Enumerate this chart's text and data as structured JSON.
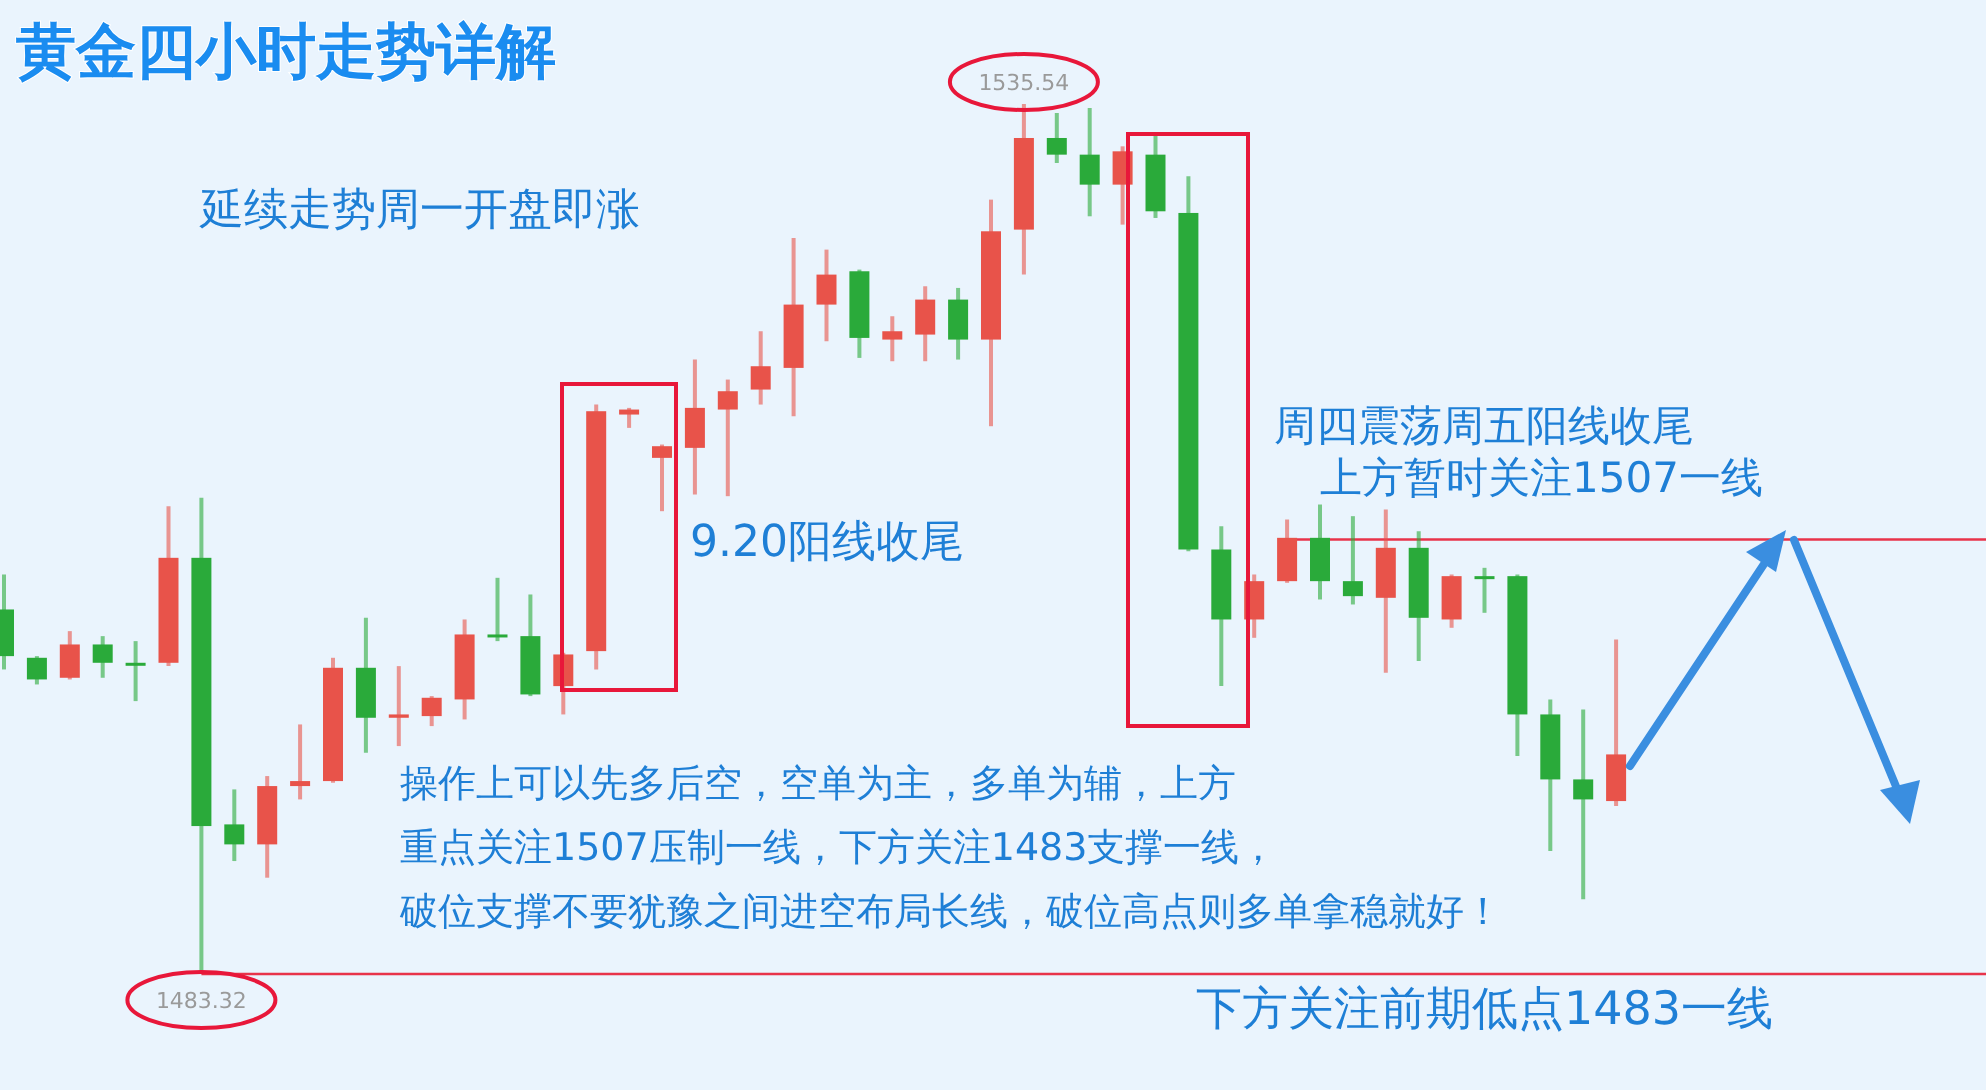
{
  "chart_data": {
    "type": "candlestick",
    "title": "黄金四小时走势详解",
    "categories": [
      null,
      null,
      null,
      null,
      null,
      null,
      null,
      null,
      null,
      null,
      null,
      null,
      null,
      null,
      null,
      null,
      null,
      null,
      null,
      null,
      null,
      null,
      null,
      null,
      null,
      null,
      null,
      null,
      null,
      null,
      null,
      null,
      null,
      null,
      null,
      null,
      null,
      null,
      null,
      null,
      null,
      null,
      null,
      null,
      null,
      null,
      null,
      null,
      null,
      null
    ],
    "ohlc": [
      [
        1505.2,
        1507.3,
        1501.6,
        1502.4
      ],
      [
        1502.3,
        1502.4,
        1500.7,
        1501.0
      ],
      [
        1501.1,
        1503.9,
        1501.0,
        1503.1
      ],
      [
        1503.1,
        1503.6,
        1501.1,
        1502.0
      ],
      [
        1502.0,
        1503.3,
        1499.7,
        1501.9
      ],
      [
        1502.0,
        1511.4,
        1501.8,
        1508.3
      ],
      [
        1508.3,
        1511.9,
        1483.32,
        1492.2
      ],
      [
        1492.3,
        1494.4,
        1490.1,
        1491.1
      ],
      [
        1491.1,
        1495.2,
        1489.1,
        1494.6
      ],
      [
        1494.6,
        1498.3,
        1493.8,
        1494.9
      ],
      [
        1494.9,
        1502.3,
        1494.8,
        1501.7
      ],
      [
        1501.7,
        1504.7,
        1496.6,
        1498.7
      ],
      [
        1498.7,
        1501.8,
        1497.0,
        1498.9
      ],
      [
        1498.8,
        1500.0,
        1498.2,
        1499.9
      ],
      [
        1499.8,
        1504.6,
        1498.6,
        1503.7
      ],
      [
        1503.7,
        1507.1,
        1503.3,
        1503.6
      ],
      [
        1503.6,
        1506.1,
        1500.0,
        1500.1
      ],
      [
        1500.6,
        1502.6,
        1498.9,
        1502.5
      ],
      [
        1502.7,
        1517.5,
        1501.6,
        1517.1
      ],
      [
        1516.9,
        1517.3,
        1516.1,
        1517.2
      ],
      [
        1514.3,
        1515.1,
        1511.1,
        1515.0
      ],
      [
        1514.9,
        1520.2,
        1512.1,
        1517.3
      ],
      [
        1517.2,
        1519.0,
        1512.0,
        1518.3
      ],
      [
        1518.4,
        1521.9,
        1517.5,
        1519.8
      ],
      [
        1519.7,
        1527.5,
        1516.8,
        1523.5
      ],
      [
        1523.5,
        1526.8,
        1521.3,
        1525.3
      ],
      [
        1525.5,
        1525.6,
        1520.3,
        1521.5
      ],
      [
        1521.4,
        1522.8,
        1520.1,
        1521.9
      ],
      [
        1521.7,
        1524.6,
        1520.1,
        1523.8
      ],
      [
        1523.8,
        1524.5,
        1520.2,
        1521.4
      ],
      [
        1521.4,
        1529.8,
        1516.2,
        1527.9
      ],
      [
        1528.0,
        1535.54,
        1525.3,
        1533.5
      ],
      [
        1533.5,
        1535.0,
        1532.0,
        1532.5
      ],
      [
        1532.5,
        1535.3,
        1528.8,
        1530.7
      ],
      [
        1530.7,
        1533.0,
        1528.3,
        1532.7
      ],
      [
        1532.5,
        1533.7,
        1528.7,
        1529.1
      ],
      [
        1529.0,
        1531.2,
        1508.7,
        1508.8
      ],
      [
        1508.8,
        1510.2,
        1500.6,
        1504.6
      ],
      [
        1504.6,
        1507.3,
        1503.5,
        1506.9
      ],
      [
        1506.9,
        1510.6,
        1506.8,
        1509.5
      ],
      [
        1509.5,
        1511.5,
        1505.8,
        1506.9
      ],
      [
        1506.9,
        1510.8,
        1505.5,
        1506.0
      ],
      [
        1505.9,
        1511.2,
        1501.4,
        1508.9
      ],
      [
        1508.9,
        1509.9,
        1502.1,
        1504.7
      ],
      [
        1504.6,
        1507.3,
        1504.1,
        1507.2
      ],
      [
        1507.2,
        1507.7,
        1505.0,
        1507.1
      ],
      [
        1507.2,
        1507.3,
        1496.4,
        1498.9
      ],
      [
        1498.9,
        1499.8,
        1490.7,
        1495.0
      ],
      [
        1495.0,
        1499.2,
        1487.8,
        1493.8
      ],
      [
        1493.7,
        1503.4,
        1493.4,
        1496.5
      ]
    ],
    "colors": [
      "#2aaa3a",
      "#2aaa3a",
      "#e8534a",
      "#2aaa3a",
      "#2aaa3a",
      "#e8534a",
      "#2aaa3a",
      "#2aaa3a",
      "#e8534a",
      "#e8534a",
      "#e8534a",
      "#2aaa3a",
      "#e8534a",
      "#e8534a",
      "#e8534a",
      "#2aaa3a",
      "#2aaa3a",
      "#e8534a",
      "#e8534a",
      "#e8534a",
      "#e8534a",
      "#e8534a",
      "#e8534a",
      "#e8534a",
      "#e8534a",
      "#e8534a",
      "#2aaa3a",
      "#e8534a",
      "#e8534a",
      "#2aaa3a",
      "#e8534a",
      "#e8534a",
      "#2aaa3a",
      "#2aaa3a",
      "#e8534a",
      "#2aaa3a",
      "#2aaa3a",
      "#2aaa3a",
      "#e8534a",
      "#e8534a",
      "#2aaa3a",
      "#2aaa3a",
      "#e8534a",
      "#2aaa3a",
      "#e8534a",
      "#2aaa3a",
      "#2aaa3a",
      "#2aaa3a",
      "#2aaa3a",
      "#e8534a"
    ],
    "annotations": [
      "延续走势周一开盘即涨",
      "9.20阳线收尾",
      "周四震荡周五阳线收尾",
      "上方暂时关注1507一线",
      "操作上可以先多后空，空单为主，多单为辅，上方",
      "重点关注1507压制一线，下方关注1483支撑一线，",
      "破位支撑不要犹豫之间进空布局长线，破位高点则多单拿稳就好！",
      "下方关注前期低点1483一线",
      {
        "text": "1535.54",
        "y": 1535.54
      },
      {
        "text": "1483.32",
        "y": 1483.32
      }
    ],
    "ref_lines": [
      {
        "axis": "y",
        "value": 1509.4,
        "color": "#e8334a"
      },
      {
        "axis": "y",
        "value": 1483.32,
        "color": "#e8334a"
      }
    ]
  }
}
